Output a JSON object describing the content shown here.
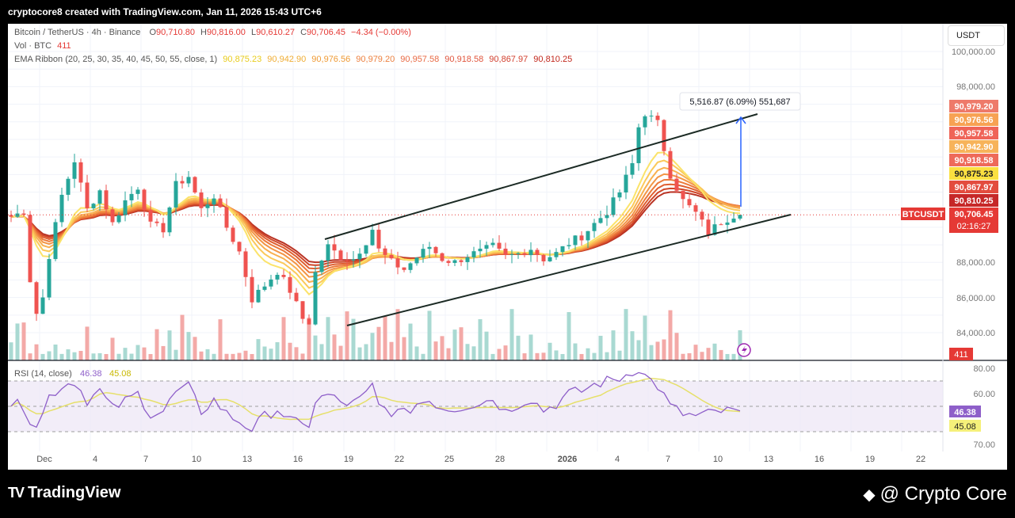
{
  "header": {
    "credit": "cryptocore8 created with TradingView.com, Jan 11, 2026 15:43 UTC+6"
  },
  "legend": {
    "symbol": "Bitcoin / TetherUS · 4h · Binance",
    "ohlc": {
      "o_label": "O",
      "o": "90,710.80",
      "h_label": "H",
      "h": "90,816.00",
      "l_label": "L",
      "l": "90,610.27",
      "c_label": "C",
      "c": "90,706.45",
      "change": "−4.34 (−0.00%)"
    },
    "volume": {
      "label": "Vol · BTC",
      "value": "411"
    },
    "ema": {
      "label": "EMA Ribbon (20, 25, 30, 35, 40, 45, 50, 55, close, 1)",
      "values": [
        "90,875.23",
        "90,942.90",
        "90,976.56",
        "90,979.20",
        "90,957.58",
        "90,918.58",
        "90,867.97",
        "90,810.25"
      ]
    }
  },
  "currency_button": "USDT",
  "measure_label": "5,516.87 (6.09%) 551,687",
  "symbol_tag": "BTCUSDT",
  "colors": {
    "up": "#26a69a",
    "down": "#ef5350",
    "vol_up": "#a9d9d2",
    "vol_down": "#f3a9a7",
    "ema": [
      "#fbe36a",
      "#fbc95a",
      "#f8b050",
      "#f39545",
      "#ec7a3a",
      "#e05f30",
      "#cf4628",
      "#b93223"
    ],
    "rsi": "#8e5fc9",
    "rsi_ma": "#e6e06a",
    "channel": "#1b2a24",
    "measure": "#2962ff"
  },
  "chart_data": [
    {
      "type": "candlestick",
      "title": "Bitcoin / TetherUS · 4h · Binance",
      "x_tick_labels": [
        "Dec",
        "4",
        "7",
        "10",
        "13",
        "16",
        "19",
        "22",
        "25",
        "28",
        "2026",
        "4",
        "7",
        "10",
        "13",
        "16",
        "19",
        "22"
      ],
      "y_tick_labels": [
        "100,000.00",
        "98,000.00",
        "88,000.00",
        "86,000.00",
        "84,000.00"
      ],
      "ylim": [
        83500,
        100500
      ],
      "last_price": "90,706.45",
      "countdown": "02:16:27",
      "volume_last": "411",
      "price_tags": [
        {
          "label": "90,979.20",
          "value": 90979.2,
          "color": "#ee7a6a"
        },
        {
          "label": "90,976.56",
          "value": 90976.56,
          "color": "#f7a253"
        },
        {
          "label": "90,957.58",
          "value": 90957.58,
          "color": "#ef6458"
        },
        {
          "label": "90,942.90",
          "value": 90942.9,
          "color": "#f7b35a"
        },
        {
          "label": "90,918.58",
          "value": 90918.58,
          "color": "#ee6a5a"
        },
        {
          "label": "90,875.23",
          "value": 90875.23,
          "color": "#fbe040"
        },
        {
          "label": "90,867.97",
          "value": 90867.97,
          "color": "#e34c3e"
        },
        {
          "label": "90,810.25",
          "value": 90810.25,
          "color": "#c62828"
        },
        {
          "label": "90,706.45",
          "value": 90706.45,
          "color": "#e53935"
        }
      ],
      "channel": {
        "upper": [
          {
            "x": "Dec 17.5",
            "y": 91200
          },
          {
            "x": "Jan 8.3",
            "y": 97900
          }
        ],
        "lower": [
          {
            "x": "Dec 18.8",
            "y": 84400
          },
          {
            "x": "Jan 14.0",
            "y": 90800
          }
        ]
      },
      "measure": {
        "x": "Jan 10.8",
        "from": 90700,
        "to": 96200
      },
      "anchors": [
        [
          0,
          90600
        ],
        [
          2,
          90900
        ],
        [
          3,
          87000
        ],
        [
          4,
          85100
        ],
        [
          5,
          86000
        ],
        [
          6,
          88400
        ],
        [
          8,
          91800
        ],
        [
          10,
          93800
        ],
        [
          12,
          91000
        ],
        [
          14,
          92100
        ],
        [
          16,
          90200
        ],
        [
          18,
          91500
        ],
        [
          20,
          92300
        ],
        [
          22,
          90100
        ],
        [
          24,
          89900
        ],
        [
          26,
          92400
        ],
        [
          28,
          92900
        ],
        [
          30,
          91000
        ],
        [
          32,
          91800
        ],
        [
          34,
          90000
        ],
        [
          36,
          88600
        ],
        [
          38,
          85900
        ],
        [
          40,
          86700
        ],
        [
          42,
          87500
        ],
        [
          44,
          86400
        ],
        [
          46,
          84800
        ],
        [
          47,
          84600
        ],
        [
          48,
          87400
        ],
        [
          50,
          88900
        ],
        [
          52,
          88300
        ],
        [
          54,
          88200
        ],
        [
          56,
          89200
        ],
        [
          57,
          89900
        ],
        [
          58,
          88700
        ],
        [
          60,
          88000
        ],
        [
          62,
          87600
        ],
        [
          64,
          88300
        ],
        [
          66,
          88900
        ],
        [
          68,
          88200
        ],
        [
          70,
          88000
        ],
        [
          72,
          88400
        ],
        [
          74,
          88600
        ],
        [
          76,
          88900
        ],
        [
          78,
          88300
        ],
        [
          80,
          88500
        ],
        [
          82,
          88800
        ],
        [
          84,
          88200
        ],
        [
          86,
          88500
        ],
        [
          88,
          89100
        ],
        [
          90,
          89500
        ],
        [
          92,
          90200
        ],
        [
          94,
          90900
        ],
        [
          96,
          92000
        ],
        [
          98,
          93600
        ],
        [
          99,
          95700
        ],
        [
          100,
          96500
        ],
        [
          102,
          95900
        ],
        [
          104,
          93000
        ],
        [
          106,
          91500
        ],
        [
          108,
          90800
        ],
        [
          110,
          89700
        ],
        [
          112,
          90300
        ],
        [
          114,
          90700
        ],
        [
          115,
          90706
        ]
      ],
      "rsi": {
        "label": "RSI (14, close)",
        "value": "46.38",
        "ma_value": "45.08",
        "y_tick_labels": [
          "80.00",
          "60.00",
          "70.00"
        ],
        "ylim": [
          20,
          80
        ],
        "band": [
          30,
          70
        ],
        "anchors": [
          [
            0,
            52
          ],
          [
            2,
            50
          ],
          [
            3,
            40
          ],
          [
            4,
            36
          ],
          [
            5,
            44
          ],
          [
            6,
            58
          ],
          [
            8,
            66
          ],
          [
            10,
            70
          ],
          [
            12,
            55
          ],
          [
            14,
            62
          ],
          [
            16,
            48
          ],
          [
            18,
            54
          ],
          [
            20,
            60
          ],
          [
            22,
            44
          ],
          [
            24,
            46
          ],
          [
            26,
            61
          ],
          [
            28,
            65
          ],
          [
            30,
            46
          ],
          [
            32,
            55
          ],
          [
            34,
            44
          ],
          [
            36,
            38
          ],
          [
            38,
            32
          ],
          [
            40,
            42
          ],
          [
            42,
            48
          ],
          [
            44,
            39
          ],
          [
            46,
            34
          ],
          [
            47,
            36
          ],
          [
            48,
            54
          ],
          [
            50,
            59
          ],
          [
            52,
            53
          ],
          [
            54,
            52
          ],
          [
            56,
            59
          ],
          [
            57,
            66
          ],
          [
            58,
            50
          ],
          [
            60,
            46
          ],
          [
            62,
            44
          ],
          [
            64,
            52
          ],
          [
            66,
            55
          ],
          [
            68,
            49
          ],
          [
            70,
            48
          ],
          [
            72,
            51
          ],
          [
            74,
            53
          ],
          [
            76,
            56
          ],
          [
            78,
            46
          ],
          [
            80,
            52
          ],
          [
            82,
            56
          ],
          [
            84,
            47
          ],
          [
            86,
            52
          ],
          [
            88,
            60
          ],
          [
            90,
            62
          ],
          [
            92,
            67
          ],
          [
            94,
            70
          ],
          [
            96,
            72
          ],
          [
            98,
            78
          ],
          [
            99,
            80
          ],
          [
            100,
            74
          ],
          [
            102,
            66
          ],
          [
            104,
            50
          ],
          [
            106,
            44
          ],
          [
            108,
            42
          ],
          [
            110,
            44
          ],
          [
            112,
            46
          ],
          [
            114,
            46
          ],
          [
            115,
            46.38
          ]
        ]
      }
    }
  ]
}
